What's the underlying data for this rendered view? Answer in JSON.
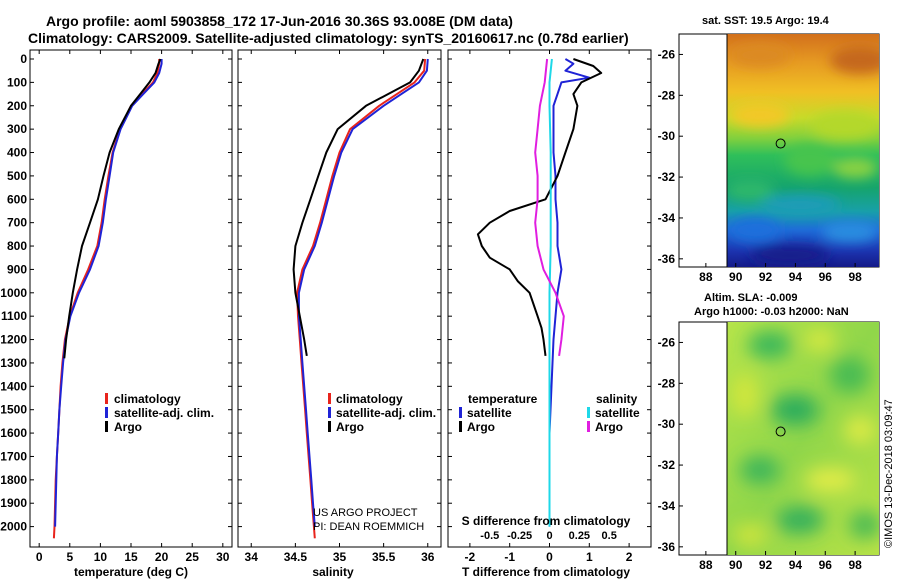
{
  "header": {
    "title_line1": "Argo profile: aoml 5903858_172 17-Jun-2016 30.36S 93.008E (DM data)",
    "title_line2": "Climatology: CARS2009. Satellite-adjusted climatology: synTS_20160617.nc (0.78d earlier)"
  },
  "colors": {
    "climatology": "#e8241c",
    "satellite": "#1f23d6",
    "argo": "#000000",
    "salinity_satellite": "#1ed8e8",
    "salinity_argo": "#e01ee0"
  },
  "chart_data": [
    {
      "type": "line",
      "name": "temperature",
      "xlabel": "temperature (deg C)",
      "ylabel": "",
      "xlim": [
        -1.5,
        31.5
      ],
      "ylim": [
        2080,
        0
      ],
      "xticks": [
        "0",
        "5",
        "10",
        "15",
        "20",
        "25",
        "30"
      ],
      "xtick_values": [
        0,
        5,
        10,
        15,
        20,
        25,
        30
      ],
      "yticks": [
        "0",
        "100",
        "200",
        "300",
        "400",
        "500",
        "600",
        "700",
        "800",
        "900",
        "1000",
        "1100",
        "1200",
        "1300",
        "1400",
        "1500",
        "1600",
        "1700",
        "1800",
        "1900",
        "2000"
      ],
      "ytick_values": [
        0,
        100,
        200,
        300,
        400,
        500,
        600,
        700,
        800,
        900,
        1000,
        1100,
        1200,
        1300,
        1400,
        1500,
        1600,
        1700,
        1800,
        1900,
        2000
      ],
      "legend": [
        "climatology",
        "satellite-adj. clim.",
        "Argo"
      ],
      "series": [
        {
          "name": "climatology",
          "depth": [
            0,
            20,
            60,
            100,
            150,
            200,
            300,
            400,
            500,
            600,
            700,
            800,
            900,
            1000,
            1100,
            1200,
            1300,
            1400,
            1500,
            1600,
            1700,
            1800,
            1900,
            2000,
            2050
          ],
          "values": [
            19.6,
            19.6,
            19.3,
            18.6,
            16.8,
            15.0,
            13.2,
            12.0,
            11.3,
            10.7,
            10.2,
            9.5,
            8.0,
            6.3,
            5.0,
            4.2,
            3.8,
            3.5,
            3.3,
            3.1,
            2.9,
            2.7,
            2.6,
            2.5,
            2.4
          ]
        },
        {
          "name": "satellite-adj. clim.",
          "depth": [
            0,
            20,
            60,
            100,
            150,
            200,
            300,
            400,
            500,
            600,
            700,
            800,
            900,
            1000,
            1100,
            1200,
            1300,
            1400,
            1500,
            1600,
            1700,
            1800,
            1900,
            2000
          ],
          "values": [
            20.0,
            20.0,
            19.6,
            18.8,
            17.0,
            15.2,
            13.3,
            12.1,
            11.5,
            10.9,
            10.4,
            9.7,
            8.3,
            6.5,
            5.1,
            4.3,
            3.9,
            3.6,
            3.3,
            3.1,
            2.9,
            2.8,
            2.7,
            2.6
          ]
        },
        {
          "name": "Argo",
          "depth": [
            0,
            20,
            60,
            100,
            150,
            200,
            300,
            400,
            500,
            600,
            700,
            800,
            900,
            1000,
            1100,
            1200,
            1280
          ],
          "values": [
            19.8,
            19.5,
            19.0,
            18.0,
            16.5,
            15.0,
            13.0,
            11.5,
            10.5,
            9.6,
            8.3,
            7.0,
            6.2,
            5.5,
            4.9,
            4.4,
            4.1
          ]
        }
      ]
    },
    {
      "type": "line",
      "name": "salinity",
      "xlabel": "salinity",
      "ylabel": "",
      "xlim": [
        33.85,
        36.15
      ],
      "ylim": [
        2080,
        0
      ],
      "xticks": [
        "34",
        "34.5",
        "35",
        "35.5",
        "36"
      ],
      "xtick_values": [
        34,
        34.5,
        35,
        35.5,
        36
      ],
      "legend": [
        "climatology",
        "satellite-adj. clim.",
        "Argo"
      ],
      "annotation": [
        "US ARGO PROJECT",
        "PI: DEAN ROEMMICH"
      ],
      "series": [
        {
          "name": "climatology",
          "depth": [
            0,
            50,
            100,
            150,
            200,
            300,
            400,
            500,
            600,
            700,
            800,
            900,
            1000,
            1100,
            1200,
            1300,
            1400,
            1500,
            1600,
            1700,
            1800,
            1900,
            2000,
            2050
          ],
          "values": [
            35.97,
            35.96,
            35.85,
            35.65,
            35.45,
            35.12,
            35.0,
            34.92,
            34.85,
            34.78,
            34.7,
            34.58,
            34.52,
            34.53,
            34.55,
            34.57,
            34.59,
            34.61,
            34.63,
            34.65,
            34.67,
            34.69,
            34.71,
            34.72
          ]
        },
        {
          "name": "satellite-adj. clim.",
          "depth": [
            0,
            50,
            100,
            150,
            200,
            300,
            400,
            500,
            600,
            700,
            800,
            900,
            1000,
            1100,
            1200,
            1300,
            1400,
            1500,
            1600,
            1700,
            1800,
            1900,
            2000
          ],
          "values": [
            36.0,
            35.99,
            35.9,
            35.7,
            35.5,
            35.15,
            35.02,
            34.94,
            34.87,
            34.8,
            34.72,
            34.6,
            34.54,
            34.54,
            34.56,
            34.58,
            34.6,
            34.62,
            34.64,
            34.66,
            34.68,
            34.7,
            34.72
          ]
        },
        {
          "name": "Argo",
          "depth": [
            0,
            50,
            100,
            150,
            200,
            300,
            400,
            500,
            600,
            700,
            800,
            900,
            1000,
            1100,
            1200,
            1270
          ],
          "values": [
            35.95,
            35.9,
            35.8,
            35.55,
            35.3,
            34.98,
            34.85,
            34.76,
            34.67,
            34.58,
            34.5,
            34.48,
            34.5,
            34.55,
            34.6,
            34.63
          ]
        }
      ]
    },
    {
      "type": "line",
      "name": "differences",
      "xlabel": "T difference from climatology",
      "xlabel_top": "S difference from climatology",
      "xlim": [
        -2.55,
        2.55
      ],
      "s_xlim": [
        -0.85,
        0.85
      ],
      "ylim": [
        2080,
        0
      ],
      "xticks": [
        "-2",
        "-1",
        "0",
        "1",
        "2"
      ],
      "xtick_values": [
        -2,
        -1,
        0,
        1,
        2
      ],
      "s_xticks": [
        "-0.5",
        "-0.25",
        "0",
        "0.25",
        "0.5"
      ],
      "s_xtick_values": [
        -0.5,
        -0.25,
        0,
        0.25,
        0.5
      ],
      "legend_temperature": {
        "heading": "temperature",
        "items": [
          "satellite",
          "Argo"
        ]
      },
      "legend_salinity": {
        "heading": "salinity",
        "items": [
          "satellite",
          "Argo"
        ]
      },
      "series": [
        {
          "name": "temperature satellite",
          "quantity": "T",
          "depth": [
            0,
            20,
            50,
            80,
            100,
            150,
            200,
            300,
            400,
            500,
            600,
            700,
            800,
            900,
            1000,
            1200,
            1400,
            1600,
            2000
          ],
          "values": [
            0.4,
            0.6,
            0.4,
            1.0,
            0.3,
            0.2,
            0.1,
            0.1,
            0.1,
            0.15,
            0.15,
            0.2,
            0.2,
            0.3,
            0.2,
            0.1,
            0.05,
            0.0,
            0.0
          ]
        },
        {
          "name": "temperature Argo",
          "quantity": "T",
          "depth": [
            0,
            30,
            60,
            100,
            150,
            200,
            300,
            400,
            500,
            600,
            650,
            700,
            750,
            800,
            850,
            900,
            950,
            1000,
            1050,
            1100,
            1150,
            1200,
            1270
          ],
          "values": [
            0.6,
            1.1,
            1.3,
            0.8,
            0.6,
            0.7,
            0.6,
            0.4,
            0.2,
            -0.1,
            -1.0,
            -1.5,
            -1.8,
            -1.7,
            -1.5,
            -1.0,
            -0.8,
            -0.5,
            -0.4,
            -0.3,
            -0.2,
            -0.15,
            -0.1
          ]
        },
        {
          "name": "salinity satellite",
          "quantity": "S",
          "depth": [
            0,
            100,
            200,
            400,
            600,
            800,
            1000,
            1200,
            1400,
            1600,
            1800,
            2000
          ],
          "values": [
            0.02,
            0.0,
            0.0,
            0.01,
            0.01,
            0.01,
            0.0,
            0.0,
            0.0,
            0.0,
            0.0,
            0.0
          ]
        },
        {
          "name": "salinity Argo",
          "quantity": "S",
          "depth": [
            0,
            100,
            200,
            300,
            400,
            500,
            600,
            700,
            800,
            900,
            1000,
            1100,
            1200,
            1270
          ],
          "values": [
            -0.02,
            -0.04,
            -0.08,
            -0.1,
            -0.12,
            -0.1,
            -0.1,
            -0.12,
            -0.1,
            -0.05,
            0.05,
            0.12,
            0.1,
            0.08
          ]
        }
      ]
    }
  ],
  "maps": {
    "sst": {
      "title": "sat. SST: 19.5 Argo: 19.4",
      "lat_ticks": [
        "-26",
        "-28",
        "-30",
        "-32",
        "-34",
        "-36"
      ],
      "lat_values": [
        -26,
        -28,
        -30,
        -32,
        -34,
        -36
      ],
      "lon_ticks": [
        "88",
        "90",
        "92",
        "94",
        "96",
        "98"
      ],
      "lon_values": [
        88,
        90,
        92,
        94,
        96,
        98
      ],
      "argo_position": {
        "lat": -30.36,
        "lon": 93.008
      }
    },
    "sla": {
      "title_line1": "Altim. SLA: -0.009",
      "title_line2": "Argo h1000: -0.03 h2000: NaN",
      "lat_ticks": [
        "-26",
        "-28",
        "-30",
        "-32",
        "-34",
        "-36"
      ],
      "lat_values": [
        -26,
        -28,
        -30,
        -32,
        -34,
        -36
      ],
      "lon_ticks": [
        "88",
        "90",
        "92",
        "94",
        "96",
        "98"
      ],
      "lon_values": [
        88,
        90,
        92,
        94,
        96,
        98
      ],
      "argo_position": {
        "lat": -30.36,
        "lon": 93.008
      }
    }
  },
  "credit": "©IMOS 13-Dec-2018 03:09:47"
}
